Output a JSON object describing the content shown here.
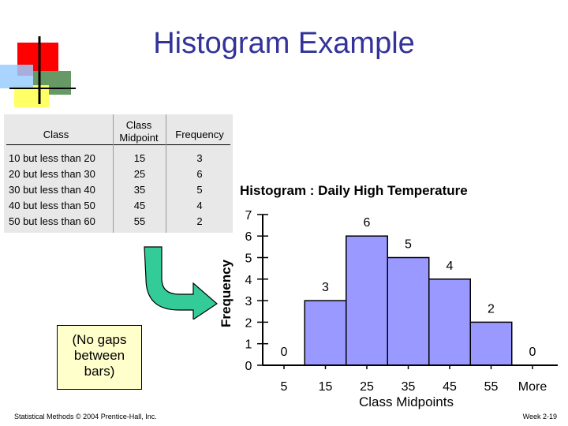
{
  "slide": {
    "title": "Histogram Example",
    "note": "(No gaps between bars)",
    "footer_left": "Statistical Methods © 2004 Prentice-Hall, Inc.",
    "footer_right": "Week 2-19"
  },
  "table": {
    "headers": [
      "Class",
      "Class Midpoint",
      "Frequency"
    ],
    "rows": [
      {
        "class": "10 but less than 20",
        "midpoint": "15",
        "frequency": "3"
      },
      {
        "class": "20 but less than 30",
        "midpoint": "25",
        "frequency": "6"
      },
      {
        "class": "30 but less than 40",
        "midpoint": "35",
        "frequency": "5"
      },
      {
        "class": "40 but less than 50",
        "midpoint": "45",
        "frequency": "4"
      },
      {
        "class": "50 but less than 60",
        "midpoint": "55",
        "frequency": "2"
      }
    ]
  },
  "chart_data": {
    "type": "bar",
    "title": "Histogram : Daily High Temperature",
    "xlabel": "Class Midpoints",
    "ylabel": "Frequency",
    "categories": [
      "5",
      "15",
      "25",
      "35",
      "45",
      "55",
      "More"
    ],
    "values": [
      0,
      3,
      6,
      5,
      4,
      2,
      0
    ],
    "yticks": [
      0,
      1,
      2,
      3,
      4,
      5,
      6,
      7
    ],
    "ylim": [
      0,
      7
    ],
    "bar_color": "#9999ff",
    "grid": false,
    "legend": "none"
  }
}
